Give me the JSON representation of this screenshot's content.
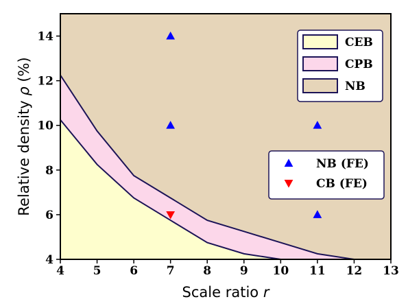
{
  "chart_data": {
    "type": "area",
    "xlabel": "Scale ratio ",
    "xlabel_var": "r",
    "ylabel": "Relative density ",
    "ylabel_var": "ρ",
    "ylabel_unit": " (%)",
    "xlim": [
      4,
      13
    ],
    "ylim": [
      4,
      15
    ],
    "xticks": [
      "4",
      "5",
      "6",
      "7",
      "8",
      "9",
      "10",
      "11",
      "12",
      "13"
    ],
    "yticks": [
      "4",
      "6",
      "8",
      "10",
      "12",
      "14"
    ],
    "grid": false,
    "regions": [
      {
        "name": "CEB",
        "color": "#fefecd",
        "boundary": [
          {
            "x": 4,
            "y": 10.25
          },
          {
            "x": 5,
            "y": 8.25
          },
          {
            "x": 6,
            "y": 6.75
          },
          {
            "x": 7,
            "y": 5.75
          },
          {
            "x": 8,
            "y": 4.75
          },
          {
            "x": 9,
            "y": 4.25
          },
          {
            "x": 10,
            "y": 4.0
          }
        ]
      },
      {
        "name": "CPB",
        "color": "#fcd7ea",
        "boundary": [
          {
            "x": 4,
            "y": 12.25
          },
          {
            "x": 5,
            "y": 9.75
          },
          {
            "x": 6,
            "y": 7.75
          },
          {
            "x": 7,
            "y": 6.75
          },
          {
            "x": 8,
            "y": 5.75
          },
          {
            "x": 9,
            "y": 5.25
          },
          {
            "x": 10,
            "y": 4.75
          },
          {
            "x": 11,
            "y": 4.25
          },
          {
            "x": 12,
            "y": 4.0
          }
        ]
      },
      {
        "name": "NB",
        "color": "#e6d5b9"
      }
    ],
    "boundary_color": "#1b1357",
    "points": [
      {
        "name": "NB (FE)",
        "marker": "triangle-up",
        "color": "#0000ff",
        "data": [
          {
            "x": 7,
            "y": 14
          },
          {
            "x": 7,
            "y": 10
          },
          {
            "x": 11,
            "y": 10
          },
          {
            "x": 11,
            "y": 6
          }
        ]
      },
      {
        "name": "CB (FE)",
        "marker": "triangle-down",
        "color": "#ff0000",
        "data": [
          {
            "x": 7,
            "y": 6
          }
        ]
      }
    ],
    "legend_regions": [
      "CEB",
      "CPB",
      "NB"
    ],
    "legend_regions_placement": "top-right",
    "legend_points": [
      "NB (FE)",
      "CB (FE)"
    ],
    "legend_points_placement": "center-right"
  }
}
